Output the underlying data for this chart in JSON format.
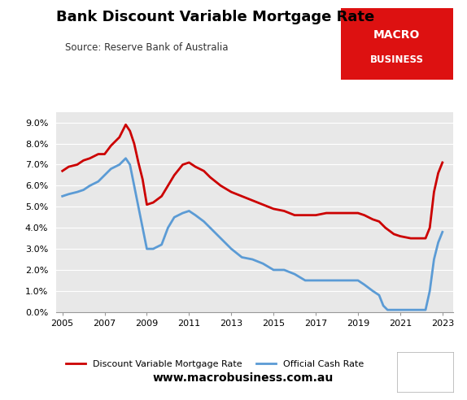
{
  "title": "Bank Discount Variable Mortgage Rate",
  "source": "Source: Reserve Bank of Australia",
  "website": "www.macrobusiness.com.au",
  "background_color": "#e8e8e8",
  "fig_background": "#ffffff",
  "ylim": [
    0.0,
    0.095
  ],
  "yticks": [
    0.0,
    0.01,
    0.02,
    0.03,
    0.04,
    0.05,
    0.06,
    0.07,
    0.08,
    0.09
  ],
  "ytick_labels": [
    "0.0%",
    "1.0%",
    "2.0%",
    "3.0%",
    "4.0%",
    "5.0%",
    "6.0%",
    "7.0%",
    "8.0%",
    "9.0%"
  ],
  "xlim": [
    2004.7,
    2023.5
  ],
  "xticks": [
    2005,
    2007,
    2009,
    2011,
    2013,
    2015,
    2017,
    2019,
    2021,
    2023
  ],
  "mortgage_color": "#cc0000",
  "cash_color": "#5b9bd5",
  "mortgage_label": "Discount Variable Mortgage Rate",
  "cash_label": "Official Cash Rate",
  "macro_box_color": "#dd1111",
  "mortgage_data": [
    [
      2005.0,
      0.067
    ],
    [
      2005.3,
      0.069
    ],
    [
      2005.7,
      0.07
    ],
    [
      2006.0,
      0.072
    ],
    [
      2006.3,
      0.073
    ],
    [
      2006.7,
      0.075
    ],
    [
      2007.0,
      0.075
    ],
    [
      2007.3,
      0.079
    ],
    [
      2007.7,
      0.083
    ],
    [
      2008.0,
      0.089
    ],
    [
      2008.2,
      0.086
    ],
    [
      2008.4,
      0.08
    ],
    [
      2008.6,
      0.071
    ],
    [
      2008.8,
      0.063
    ],
    [
      2009.0,
      0.051
    ],
    [
      2009.3,
      0.052
    ],
    [
      2009.7,
      0.055
    ],
    [
      2010.0,
      0.06
    ],
    [
      2010.3,
      0.065
    ],
    [
      2010.7,
      0.07
    ],
    [
      2011.0,
      0.071
    ],
    [
      2011.3,
      0.069
    ],
    [
      2011.7,
      0.067
    ],
    [
      2012.0,
      0.064
    ],
    [
      2012.5,
      0.06
    ],
    [
      2013.0,
      0.057
    ],
    [
      2013.5,
      0.055
    ],
    [
      2014.0,
      0.053
    ],
    [
      2014.5,
      0.051
    ],
    [
      2015.0,
      0.049
    ],
    [
      2015.5,
      0.048
    ],
    [
      2016.0,
      0.046
    ],
    [
      2016.5,
      0.046
    ],
    [
      2017.0,
      0.046
    ],
    [
      2017.5,
      0.047
    ],
    [
      2018.0,
      0.047
    ],
    [
      2018.5,
      0.047
    ],
    [
      2019.0,
      0.047
    ],
    [
      2019.3,
      0.046
    ],
    [
      2019.7,
      0.044
    ],
    [
      2020.0,
      0.043
    ],
    [
      2020.3,
      0.04
    ],
    [
      2020.7,
      0.037
    ],
    [
      2021.0,
      0.036
    ],
    [
      2021.5,
      0.035
    ],
    [
      2022.0,
      0.035
    ],
    [
      2022.2,
      0.035
    ],
    [
      2022.4,
      0.04
    ],
    [
      2022.6,
      0.057
    ],
    [
      2022.8,
      0.066
    ],
    [
      2023.0,
      0.071
    ]
  ],
  "cash_data": [
    [
      2005.0,
      0.055
    ],
    [
      2005.3,
      0.056
    ],
    [
      2005.7,
      0.057
    ],
    [
      2006.0,
      0.058
    ],
    [
      2006.3,
      0.06
    ],
    [
      2006.7,
      0.062
    ],
    [
      2007.0,
      0.065
    ],
    [
      2007.3,
      0.068
    ],
    [
      2007.7,
      0.07
    ],
    [
      2008.0,
      0.073
    ],
    [
      2008.2,
      0.07
    ],
    [
      2008.4,
      0.06
    ],
    [
      2008.6,
      0.05
    ],
    [
      2008.8,
      0.04
    ],
    [
      2009.0,
      0.03
    ],
    [
      2009.3,
      0.03
    ],
    [
      2009.7,
      0.032
    ],
    [
      2010.0,
      0.04
    ],
    [
      2010.3,
      0.045
    ],
    [
      2010.7,
      0.047
    ],
    [
      2011.0,
      0.048
    ],
    [
      2011.3,
      0.046
    ],
    [
      2011.7,
      0.043
    ],
    [
      2012.0,
      0.04
    ],
    [
      2012.5,
      0.035
    ],
    [
      2013.0,
      0.03
    ],
    [
      2013.5,
      0.026
    ],
    [
      2014.0,
      0.025
    ],
    [
      2014.5,
      0.023
    ],
    [
      2015.0,
      0.02
    ],
    [
      2015.5,
      0.02
    ],
    [
      2016.0,
      0.018
    ],
    [
      2016.5,
      0.015
    ],
    [
      2017.0,
      0.015
    ],
    [
      2017.5,
      0.015
    ],
    [
      2018.0,
      0.015
    ],
    [
      2018.5,
      0.015
    ],
    [
      2019.0,
      0.015
    ],
    [
      2019.3,
      0.013
    ],
    [
      2019.7,
      0.01
    ],
    [
      2020.0,
      0.008
    ],
    [
      2020.2,
      0.003
    ],
    [
      2020.4,
      0.001
    ],
    [
      2020.7,
      0.001
    ],
    [
      2021.0,
      0.001
    ],
    [
      2021.5,
      0.001
    ],
    [
      2022.0,
      0.001
    ],
    [
      2022.2,
      0.001
    ],
    [
      2022.4,
      0.01
    ],
    [
      2022.6,
      0.025
    ],
    [
      2022.8,
      0.033
    ],
    [
      2023.0,
      0.038
    ]
  ]
}
